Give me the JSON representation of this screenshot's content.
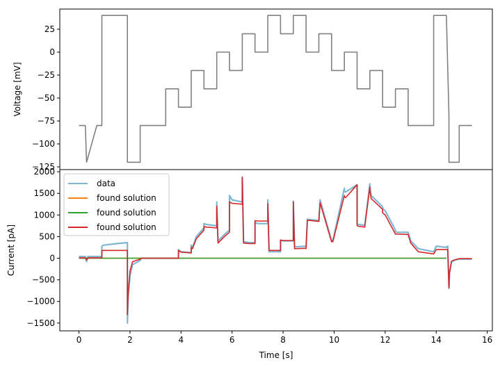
{
  "chart_data": [
    {
      "type": "line",
      "title": "",
      "xlabel": "",
      "ylabel": "Voltage [mV]",
      "xlim": [
        -0.75,
        16.2
      ],
      "ylim": [
        -128,
        47
      ],
      "yticks": [
        25,
        0,
        -25,
        -50,
        -75,
        -100,
        -125
      ],
      "ytick_labels": [
        "25",
        "0",
        "−25",
        "−50",
        "−75",
        "−100",
        "−125"
      ],
      "grid": false,
      "series": [
        {
          "color": "#808080",
          "x": [
            0,
            0.25,
            0.3,
            0.7,
            0.9,
            0.9,
            1.9,
            1.9,
            2.4,
            2.4,
            3.4,
            3.4,
            3.9,
            3.9,
            4.4,
            4.4,
            4.9,
            4.9,
            5.4,
            5.4,
            5.9,
            5.9,
            6.4,
            6.4,
            6.9,
            6.9,
            7.4,
            7.4,
            7.9,
            7.9,
            8.4,
            8.4,
            8.9,
            8.9,
            9.4,
            9.4,
            9.9,
            9.9,
            10.4,
            10.4,
            10.9,
            10.9,
            11.4,
            11.4,
            11.9,
            11.9,
            12.4,
            12.4,
            12.9,
            12.9,
            13.9,
            13.9,
            14.4,
            14.5,
            14.5,
            14.9,
            14.9,
            15.4
          ],
          "y": [
            -80,
            -80,
            -120,
            -80,
            -80,
            40,
            40,
            -120,
            -120,
            -80,
            -80,
            -40,
            -40,
            -60,
            -60,
            -20,
            -20,
            -40,
            -40,
            0,
            0,
            -20,
            -20,
            20,
            20,
            0,
            0,
            40,
            40,
            20,
            20,
            40,
            40,
            0,
            0,
            20,
            20,
            -20,
            -20,
            0,
            0,
            -40,
            -40,
            -20,
            -20,
            -60,
            -60,
            -40,
            -40,
            -80,
            -80,
            40,
            40,
            -70,
            -120,
            -120,
            -80,
            -80
          ]
        }
      ]
    },
    {
      "type": "line",
      "title": "",
      "xlabel": "Time [s]",
      "ylabel": "Current [pA]",
      "xlim": [
        -0.75,
        16.2
      ],
      "ylim": [
        -1680,
        2050
      ],
      "xticks": [
        0,
        2,
        4,
        6,
        8,
        10,
        12,
        14,
        16
      ],
      "xtick_labels": [
        "0",
        "2",
        "4",
        "6",
        "8",
        "10",
        "12",
        "14",
        "16"
      ],
      "yticks": [
        2000,
        1500,
        1000,
        500,
        0,
        -500,
        -1000,
        -1500
      ],
      "ytick_labels": [
        "2000",
        "1500",
        "1000",
        "500",
        "0",
        "−500",
        "−1000",
        "−1500"
      ],
      "legend": "upper-left",
      "grid": false,
      "series": [
        {
          "name": "data",
          "color": "#7fb6d2",
          "x": [
            0,
            0.25,
            0.3,
            0.35,
            0.7,
            0.9,
            0.9,
            0.95,
            1.5,
            1.9,
            1.9,
            1.93,
            2.0,
            2.1,
            2.4,
            2.45,
            3.4,
            3.4,
            3.5,
            3.9,
            3.9,
            4.0,
            4.4,
            4.4,
            4.45,
            4.6,
            4.9,
            4.9,
            5.0,
            5.4,
            5.4,
            5.45,
            5.7,
            5.9,
            5.9,
            6.0,
            6.4,
            6.4,
            6.45,
            6.7,
            6.9,
            6.9,
            7.0,
            7.4,
            7.4,
            7.45,
            7.9,
            7.9,
            8.0,
            8.4,
            8.4,
            8.45,
            8.9,
            8.9,
            8.95,
            9.4,
            9.4,
            9.45,
            9.9,
            9.9,
            9.95,
            10.4,
            10.4,
            10.45,
            10.9,
            10.9,
            10.95,
            11.2,
            11.4,
            11.4,
            11.45,
            11.9,
            11.9,
            12.0,
            12.4,
            12.4,
            12.45,
            12.9,
            12.9,
            13.0,
            13.3,
            13.9,
            13.9,
            14.0,
            14.4,
            14.45,
            14.5,
            14.52,
            14.6,
            14.7,
            14.9,
            15.4
          ],
          "y": [
            40,
            40,
            -80,
            40,
            40,
            40,
            280,
            300,
            340,
            360,
            -1500,
            -900,
            -400,
            -150,
            -50,
            0,
            0,
            0,
            0,
            0,
            200,
            150,
            130,
            300,
            250,
            500,
            700,
            800,
            780,
            750,
            1300,
            400,
            550,
            650,
            1450,
            1350,
            1300,
            1880,
            380,
            360,
            360,
            830,
            800,
            800,
            1350,
            150,
            150,
            420,
            400,
            400,
            1320,
            260,
            280,
            260,
            900,
            870,
            860,
            1350,
            400,
            420,
            400,
            1620,
            1560,
            1530,
            1700,
            800,
            780,
            760,
            1720,
            1650,
            1450,
            1190,
            1150,
            1100,
            650,
            620,
            600,
            600,
            600,
            400,
            220,
            150,
            150,
            280,
            250,
            280,
            -700,
            -350,
            -80,
            -50,
            -20,
            -20
          ]
        },
        {
          "name": "found solution",
          "color": "#ff7f0e",
          "x": [
            0,
            14.4
          ],
          "y": [
            0,
            0
          ]
        },
        {
          "name": "found solution",
          "color": "#2ca02c",
          "x": [
            0,
            14.4
          ],
          "y": [
            0,
            0
          ]
        },
        {
          "name": "found solution",
          "color": "#d62728",
          "x": [
            0,
            0.25,
            0.3,
            0.35,
            0.7,
            0.9,
            0.9,
            0.95,
            1.5,
            1.9,
            1.9,
            1.93,
            2.0,
            2.1,
            2.4,
            2.45,
            3.4,
            3.4,
            3.5,
            3.9,
            3.9,
            4.0,
            4.4,
            4.4,
            4.45,
            4.6,
            4.9,
            4.9,
            5.0,
            5.4,
            5.4,
            5.45,
            5.7,
            5.9,
            5.9,
            6.0,
            6.4,
            6.4,
            6.45,
            6.7,
            6.9,
            6.9,
            7.0,
            7.4,
            7.4,
            7.45,
            7.9,
            7.9,
            8.0,
            8.4,
            8.4,
            8.45,
            8.9,
            8.9,
            8.95,
            9.4,
            9.4,
            9.45,
            9.9,
            9.9,
            9.95,
            10.4,
            10.4,
            10.45,
            10.9,
            10.9,
            10.95,
            11.2,
            11.4,
            11.4,
            11.45,
            11.9,
            11.9,
            12.0,
            12.4,
            12.4,
            12.45,
            12.9,
            12.9,
            13.0,
            13.3,
            13.9,
            13.9,
            14.0,
            14.4,
            14.45,
            14.5,
            14.52,
            14.6,
            14.7,
            14.9,
            15.4
          ],
          "y": [
            10,
            10,
            -40,
            10,
            10,
            10,
            180,
            180,
            180,
            180,
            -1300,
            -800,
            -300,
            -80,
            -20,
            0,
            0,
            0,
            0,
            0,
            180,
            140,
            120,
            250,
            220,
            450,
            650,
            730,
            720,
            700,
            1200,
            350,
            500,
            600,
            1300,
            1270,
            1250,
            1870,
            350,
            340,
            340,
            870,
            860,
            860,
            1260,
            180,
            180,
            420,
            410,
            410,
            1300,
            220,
            230,
            220,
            880,
            850,
            850,
            1280,
            380,
            400,
            380,
            1450,
            1420,
            1400,
            1700,
            760,
            740,
            720,
            1650,
            1570,
            1380,
            1130,
            1050,
            1000,
            560,
            560,
            560,
            550,
            550,
            350,
            150,
            100,
            100,
            200,
            200,
            200,
            -680,
            -330,
            -70,
            -40,
            -10,
            -10
          ]
        }
      ]
    }
  ]
}
